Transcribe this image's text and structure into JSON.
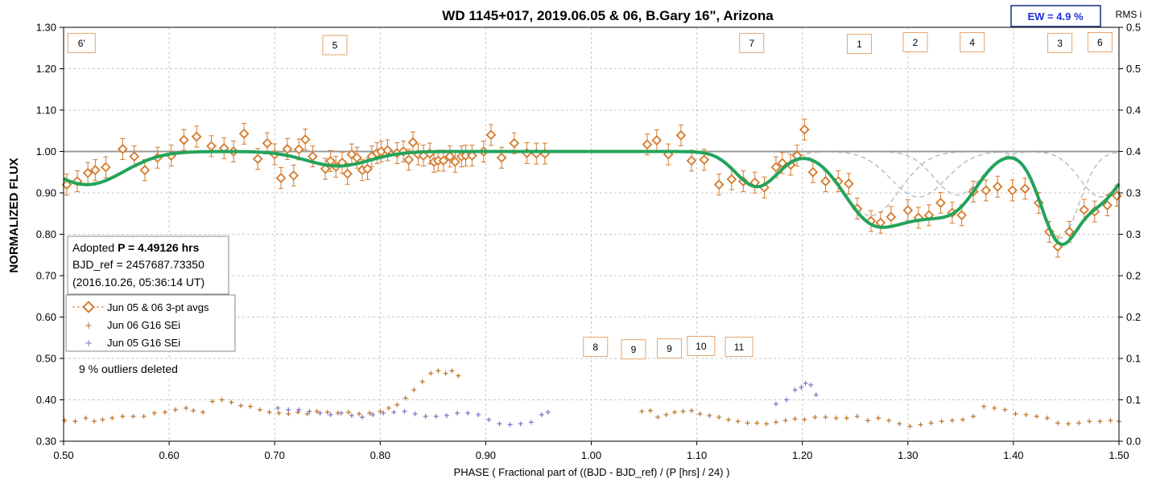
{
  "chart_data": {
    "type": "scatter",
    "title": "WD 1145+017, 2019.06.05 & 06, B.Gary 16\", Arizona",
    "xlabel": "PHASE ( Fractional part of ((BJD - BJD_ref) / (P [hrs] / 24) )",
    "ylabel": "NORMALIZED FLUX",
    "y2label": "RMS i",
    "xlim": [
      0.5,
      1.5
    ],
    "ylim": [
      0.3,
      1.3
    ],
    "y2lim": [
      0.0,
      0.5
    ],
    "x_ticks": [
      "0.50",
      "0.60",
      "0.70",
      "0.80",
      "0.90",
      "1.00",
      "1.10",
      "1.20",
      "1.30",
      "1.40",
      "1.50"
    ],
    "y_ticks": [
      "0.30",
      "0.40",
      "0.50",
      "0.60",
      "0.70",
      "0.80",
      "0.90",
      "1.00",
      "1.10",
      "1.20",
      "1.30"
    ],
    "y2_ticks": [
      "0.0",
      "0.1",
      "0.1",
      "0.2",
      "0.2",
      "0.3",
      "0.3",
      "0.4",
      "0.4",
      "0.5",
      "0.5"
    ],
    "grid": true,
    "ew_label": "EW =  4.9 %",
    "info_box": {
      "line1_prefix": "Adopted ",
      "line1_bold": "P = 4.49126 hrs",
      "line2": "BJD_ref = 2457687.73350",
      "line3": "(2016.10.26, 05:36:14 UT)"
    },
    "outliers_note": "9 % outliers deleted",
    "legend": [
      {
        "name": "Jun 05 & 06 3-pt avgs",
        "color": "#d47a2a"
      },
      {
        "name": "Jun 06 G16 SEi",
        "color": "#b8742a"
      },
      {
        "name": "Jun 05 G16 SEi",
        "color": "#7b72c0"
      }
    ],
    "dip_labels": [
      {
        "text": "6'",
        "x": 0.517,
        "y": 1.262
      },
      {
        "text": "5",
        "x": 0.757,
        "y": 1.257
      },
      {
        "text": "7",
        "x": 1.152,
        "y": 1.262
      },
      {
        "text": "1",
        "x": 1.254,
        "y": 1.26
      },
      {
        "text": "2",
        "x": 1.307,
        "y": 1.264
      },
      {
        "text": "4",
        "x": 1.361,
        "y": 1.264
      },
      {
        "text": "3",
        "x": 1.444,
        "y": 1.262
      },
      {
        "text": "6",
        "x": 1.482,
        "y": 1.264
      },
      {
        "text": "8",
        "x": 1.004,
        "y": 0.528
      },
      {
        "text": "9",
        "x": 1.04,
        "y": 0.522
      },
      {
        "text": "9",
        "x": 1.074,
        "y": 0.524
      },
      {
        "text": "10",
        "x": 1.104,
        "y": 0.53
      },
      {
        "text": "11",
        "x": 1.14,
        "y": 0.528
      }
    ],
    "model_dips": [
      {
        "center": 0.522,
        "depth": 0.08,
        "width": 0.035
      },
      {
        "center": 0.76,
        "depth": 0.035,
        "width": 0.03
      },
      {
        "center": 1.157,
        "depth": 0.085,
        "width": 0.02
      },
      {
        "center": 1.265,
        "depth": 0.155,
        "width": 0.027
      },
      {
        "center": 1.31,
        "depth": 0.11,
        "width": 0.026
      },
      {
        "center": 1.347,
        "depth": 0.105,
        "width": 0.022
      },
      {
        "center": 1.444,
        "depth": 0.21,
        "width": 0.018
      },
      {
        "center": 1.483,
        "depth": 0.11,
        "width": 0.02
      }
    ],
    "series": [
      {
        "name": "Jun 05 & 06 3-pt avgs",
        "points": [
          [
            0.503,
            0.92
          ],
          [
            0.513,
            0.928
          ],
          [
            0.523,
            0.948
          ],
          [
            0.53,
            0.955
          ],
          [
            0.54,
            0.962
          ],
          [
            0.556,
            1.006
          ],
          [
            0.567,
            0.988
          ],
          [
            0.577,
            0.955
          ],
          [
            0.589,
            0.985
          ],
          [
            0.602,
            0.99
          ],
          [
            0.614,
            1.028
          ],
          [
            0.626,
            1.036
          ],
          [
            0.64,
            1.013
          ],
          [
            0.652,
            1.008
          ],
          [
            0.661,
            1.0
          ],
          [
            0.671,
            1.043
          ],
          [
            0.684,
            0.982
          ],
          [
            0.693,
            1.02
          ],
          [
            0.7,
            0.993
          ],
          [
            0.706,
            0.936
          ],
          [
            0.712,
            1.006
          ],
          [
            0.718,
            0.942
          ],
          [
            0.723,
            1.005
          ],
          [
            0.729,
            1.029
          ],
          [
            0.736,
            0.988
          ],
          [
            0.748,
            0.958
          ],
          [
            0.753,
            0.977
          ],
          [
            0.758,
            0.963
          ],
          [
            0.764,
            0.973
          ],
          [
            0.769,
            0.946
          ],
          [
            0.773,
            0.993
          ],
          [
            0.778,
            0.985
          ],
          [
            0.783,
            0.955
          ],
          [
            0.788,
            0.958
          ],
          [
            0.792,
            0.988
          ],
          [
            0.797,
            0.996
          ],
          [
            0.801,
            1.0
          ],
          [
            0.807,
            1.003
          ],
          [
            0.816,
            0.996
          ],
          [
            0.822,
            1.0
          ],
          [
            0.827,
            0.98
          ],
          [
            0.831,
            1.022
          ],
          [
            0.836,
            0.993
          ],
          [
            0.841,
            0.99
          ],
          [
            0.847,
            0.995
          ],
          [
            0.851,
            0.975
          ],
          [
            0.855,
            0.978
          ],
          [
            0.86,
            0.978
          ],
          [
            0.866,
            0.988
          ],
          [
            0.871,
            0.975
          ],
          [
            0.877,
            0.988
          ],
          [
            0.881,
            0.99
          ],
          [
            0.887,
            0.99
          ],
          [
            0.898,
            1.0
          ],
          [
            0.905,
            1.04
          ],
          [
            0.915,
            0.985
          ],
          [
            0.927,
            1.02
          ],
          [
            0.939,
            0.996
          ],
          [
            0.948,
            0.995
          ],
          [
            0.956,
            0.995
          ],
          [
            1.053,
            1.017
          ],
          [
            1.062,
            1.027
          ],
          [
            1.073,
            0.993
          ],
          [
            1.085,
            1.039
          ],
          [
            1.095,
            0.978
          ],
          [
            1.107,
            0.98
          ],
          [
            1.121,
            0.92
          ],
          [
            1.133,
            0.933
          ],
          [
            1.144,
            0.928
          ],
          [
            1.155,
            0.925
          ],
          [
            1.164,
            0.913
          ],
          [
            1.175,
            0.962
          ],
          [
            1.181,
            0.972
          ],
          [
            1.189,
            0.968
          ],
          [
            1.195,
            0.99
          ],
          [
            1.202,
            1.053
          ],
          [
            1.21,
            0.95
          ],
          [
            1.222,
            0.928
          ],
          [
            1.234,
            0.928
          ],
          [
            1.244,
            0.922
          ],
          [
            1.252,
            0.862
          ],
          [
            1.265,
            0.832
          ],
          [
            1.274,
            0.828
          ],
          [
            1.284,
            0.842
          ],
          [
            1.3,
            0.858
          ],
          [
            1.31,
            0.84
          ],
          [
            1.32,
            0.846
          ],
          [
            1.331,
            0.876
          ],
          [
            1.342,
            0.852
          ],
          [
            1.351,
            0.846
          ],
          [
            1.362,
            0.903
          ],
          [
            1.374,
            0.906
          ],
          [
            1.385,
            0.915
          ],
          [
            1.399,
            0.906
          ],
          [
            1.411,
            0.91
          ],
          [
            1.424,
            0.876
          ],
          [
            1.434,
            0.806
          ],
          [
            1.442,
            0.77
          ],
          [
            1.453,
            0.806
          ],
          [
            1.467,
            0.859
          ],
          [
            1.477,
            0.855
          ],
          [
            1.489,
            0.87
          ],
          [
            1.498,
            0.893
          ]
        ]
      },
      {
        "name": "Jun 06 G16 SEi",
        "rms_points": [
          [
            0.501,
            0.025
          ],
          [
            0.511,
            0.024
          ],
          [
            0.521,
            0.028
          ],
          [
            0.529,
            0.024
          ],
          [
            0.537,
            0.026
          ],
          [
            0.546,
            0.028
          ],
          [
            0.556,
            0.03
          ],
          [
            0.566,
            0.03
          ],
          [
            0.576,
            0.03
          ],
          [
            0.586,
            0.034
          ],
          [
            0.596,
            0.035
          ],
          [
            0.606,
            0.038
          ],
          [
            0.616,
            0.04
          ],
          [
            0.623,
            0.037
          ],
          [
            0.632,
            0.035
          ],
          [
            0.641,
            0.048
          ],
          [
            0.65,
            0.05
          ],
          [
            0.659,
            0.047
          ],
          [
            0.668,
            0.043
          ],
          [
            0.677,
            0.042
          ],
          [
            0.686,
            0.038
          ],
          [
            0.695,
            0.035
          ],
          [
            0.704,
            0.034
          ],
          [
            0.713,
            0.033
          ],
          [
            0.722,
            0.035
          ],
          [
            0.731,
            0.033
          ],
          [
            0.74,
            0.036
          ],
          [
            0.75,
            0.035
          ],
          [
            0.76,
            0.034
          ],
          [
            0.77,
            0.035
          ],
          [
            0.78,
            0.033
          ],
          [
            0.79,
            0.034
          ],
          [
            0.8,
            0.036
          ],
          [
            0.808,
            0.04
          ],
          [
            0.816,
            0.044
          ],
          [
            0.824,
            0.052
          ],
          [
            0.832,
            0.062
          ],
          [
            0.84,
            0.072
          ],
          [
            0.848,
            0.082
          ],
          [
            0.855,
            0.085
          ],
          [
            0.862,
            0.082
          ],
          [
            0.868,
            0.085
          ],
          [
            0.874,
            0.079
          ],
          [
            1.048,
            0.036
          ],
          [
            1.056,
            0.037
          ],
          [
            1.063,
            0.029
          ],
          [
            1.071,
            0.032
          ],
          [
            1.079,
            0.035
          ],
          [
            1.087,
            0.036
          ],
          [
            1.095,
            0.037
          ],
          [
            1.103,
            0.033
          ],
          [
            1.112,
            0.031
          ],
          [
            1.121,
            0.029
          ],
          [
            1.13,
            0.026
          ],
          [
            1.139,
            0.024
          ],
          [
            1.148,
            0.022
          ],
          [
            1.157,
            0.022
          ],
          [
            1.166,
            0.021
          ],
          [
            1.175,
            0.023
          ],
          [
            1.184,
            0.025
          ],
          [
            1.193,
            0.027
          ],
          [
            1.202,
            0.026
          ],
          [
            1.212,
            0.029
          ],
          [
            1.222,
            0.029
          ],
          [
            1.232,
            0.028
          ],
          [
            1.242,
            0.028
          ],
          [
            1.252,
            0.03
          ],
          [
            1.262,
            0.025
          ],
          [
            1.272,
            0.028
          ],
          [
            1.282,
            0.025
          ],
          [
            1.292,
            0.021
          ],
          [
            1.302,
            0.018
          ],
          [
            1.312,
            0.02
          ],
          [
            1.322,
            0.022
          ],
          [
            1.332,
            0.024
          ],
          [
            1.342,
            0.025
          ],
          [
            1.352,
            0.026
          ],
          [
            1.362,
            0.03
          ],
          [
            1.372,
            0.042
          ],
          [
            1.382,
            0.04
          ],
          [
            1.392,
            0.038
          ],
          [
            1.402,
            0.033
          ],
          [
            1.412,
            0.032
          ],
          [
            1.422,
            0.03
          ],
          [
            1.432,
            0.028
          ],
          [
            1.442,
            0.022
          ],
          [
            1.452,
            0.021
          ],
          [
            1.462,
            0.022
          ],
          [
            1.472,
            0.024
          ],
          [
            1.482,
            0.024
          ],
          [
            1.492,
            0.025
          ],
          [
            1.5,
            0.024
          ]
        ]
      },
      {
        "name": "Jun 05 G16 SEi",
        "rms_points": [
          [
            0.703,
            0.04
          ],
          [
            0.713,
            0.038
          ],
          [
            0.723,
            0.038
          ],
          [
            0.733,
            0.036
          ],
          [
            0.743,
            0.034
          ],
          [
            0.753,
            0.032
          ],
          [
            0.763,
            0.034
          ],
          [
            0.773,
            0.031
          ],
          [
            0.783,
            0.029
          ],
          [
            0.793,
            0.032
          ],
          [
            0.803,
            0.034
          ],
          [
            0.813,
            0.035
          ],
          [
            0.823,
            0.036
          ],
          [
            0.833,
            0.033
          ],
          [
            0.843,
            0.03
          ],
          [
            0.853,
            0.03
          ],
          [
            0.863,
            0.031
          ],
          [
            0.873,
            0.034
          ],
          [
            0.883,
            0.034
          ],
          [
            0.893,
            0.032
          ],
          [
            0.903,
            0.026
          ],
          [
            0.913,
            0.021
          ],
          [
            0.923,
            0.02
          ],
          [
            0.933,
            0.021
          ],
          [
            0.943,
            0.023
          ],
          [
            0.953,
            0.032
          ],
          [
            0.959,
            0.035
          ],
          [
            1.175,
            0.045
          ],
          [
            1.185,
            0.05
          ],
          [
            1.193,
            0.062
          ],
          [
            1.199,
            0.065
          ],
          [
            1.203,
            0.07
          ],
          [
            1.208,
            0.068
          ],
          [
            1.213,
            0.056
          ]
        ]
      }
    ]
  }
}
